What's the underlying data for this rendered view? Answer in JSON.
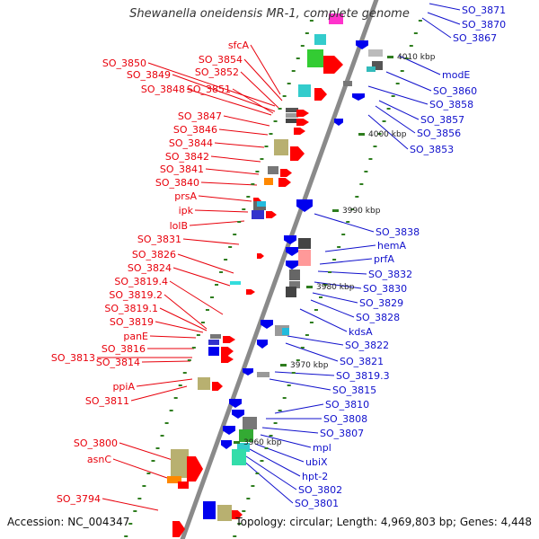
{
  "title": "Shewanella oneidensis MR-1, complete genome",
  "footer": {
    "accession": "Accession: NC_004347",
    "summary": "Topology: circular; Length: 4,969,803 bp; Genes: 4,448"
  },
  "colors": {
    "left_label": "#e8000b",
    "right_label": "#1010cc",
    "backbone": "#8a8a8a",
    "tick": "#2e7d1e"
  },
  "kbp_marks": [
    "4010 kbp",
    "4000 kbp",
    "3990 kbp",
    "3980 kbp",
    "3970 kbp",
    "3960 kbp"
  ],
  "left_labels": [
    "sfcA",
    "SO_3854",
    "SO_3850",
    "SO_3852",
    "SO_3849",
    "SO_3848",
    "SO_3851",
    "SO_3847",
    "SO_3846",
    "SO_3844",
    "SO_3842",
    "SO_3841",
    "SO_3840",
    "prsA",
    "ipk",
    "lolB",
    "SO_3831",
    "SO_3826",
    "SO_3824",
    "SO_3819.4",
    "SO_3819.2",
    "SO_3819.1",
    "SO_3819",
    "panE",
    "SO_3816",
    "SO_3813",
    "SO_3814",
    "ppiA",
    "SO_3811",
    "SO_3800",
    "asnC",
    "SO_3794"
  ],
  "right_labels": [
    "SO_3871",
    "SO_3870",
    "SO_3867",
    "modE",
    "SO_3860",
    "SO_3858",
    "SO_3857",
    "SO_3856",
    "SO_3853",
    "SO_3838",
    "hemA",
    "prfA",
    "SO_3832",
    "SO_3830",
    "SO_3829",
    "SO_3828",
    "kdsA",
    "SO_3822",
    "SO_3821",
    "SO_3819.3",
    "SO_3815",
    "SO_3810",
    "SO_3808",
    "SO_3807",
    "mpl",
    "ubiX",
    "hpt-2",
    "SO_3802",
    "SO_3801"
  ]
}
